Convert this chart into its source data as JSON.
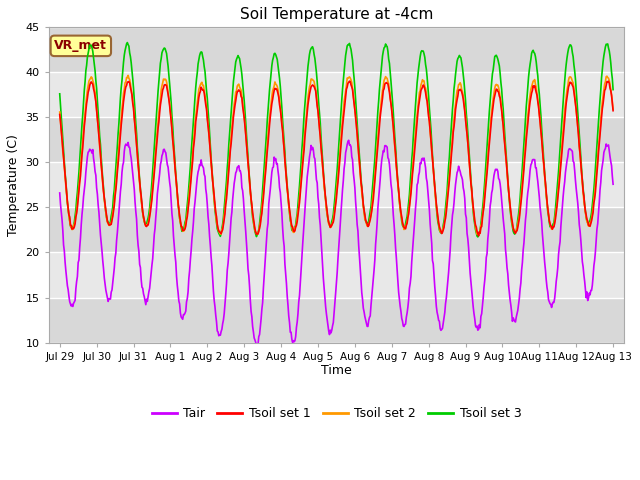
{
  "title": "Soil Temperature at -4cm",
  "xlabel": "Time",
  "ylabel": "Temperature (C)",
  "ylim": [
    10,
    45
  ],
  "legend_labels": [
    "Tair",
    "Tsoil set 1",
    "Tsoil set 2",
    "Tsoil set 3"
  ],
  "colors": {
    "Tair": "#cc00ff",
    "Tsoil1": "#ff0000",
    "Tsoil2": "#ff9900",
    "Tsoil3": "#00cc00"
  },
  "annotation_text": "VR_met",
  "annotation_color": "#8b0000",
  "annotation_bg": "#ffff99",
  "annotation_border": "#996633",
  "plot_bg_light": "#e8e8e8",
  "plot_bg_dark": "#d8d8d8",
  "figure_bg": "#ffffff",
  "tick_labels": [
    "Jul 29",
    "Jul 30",
    "Jul 31",
    "Aug 1",
    "Aug 2",
    "Aug 3",
    "Aug 4",
    "Aug 5",
    "Aug 6",
    "Aug 7",
    "Aug 8",
    "Aug 9",
    "Aug 10",
    "Aug 11",
    "Aug 12",
    "Aug 13"
  ],
  "tick_positions": [
    0,
    1,
    2,
    3,
    4,
    5,
    6,
    7,
    8,
    9,
    10,
    11,
    12,
    13,
    14,
    15
  ],
  "yticks": [
    10,
    15,
    20,
    25,
    30,
    35,
    40,
    45
  ]
}
